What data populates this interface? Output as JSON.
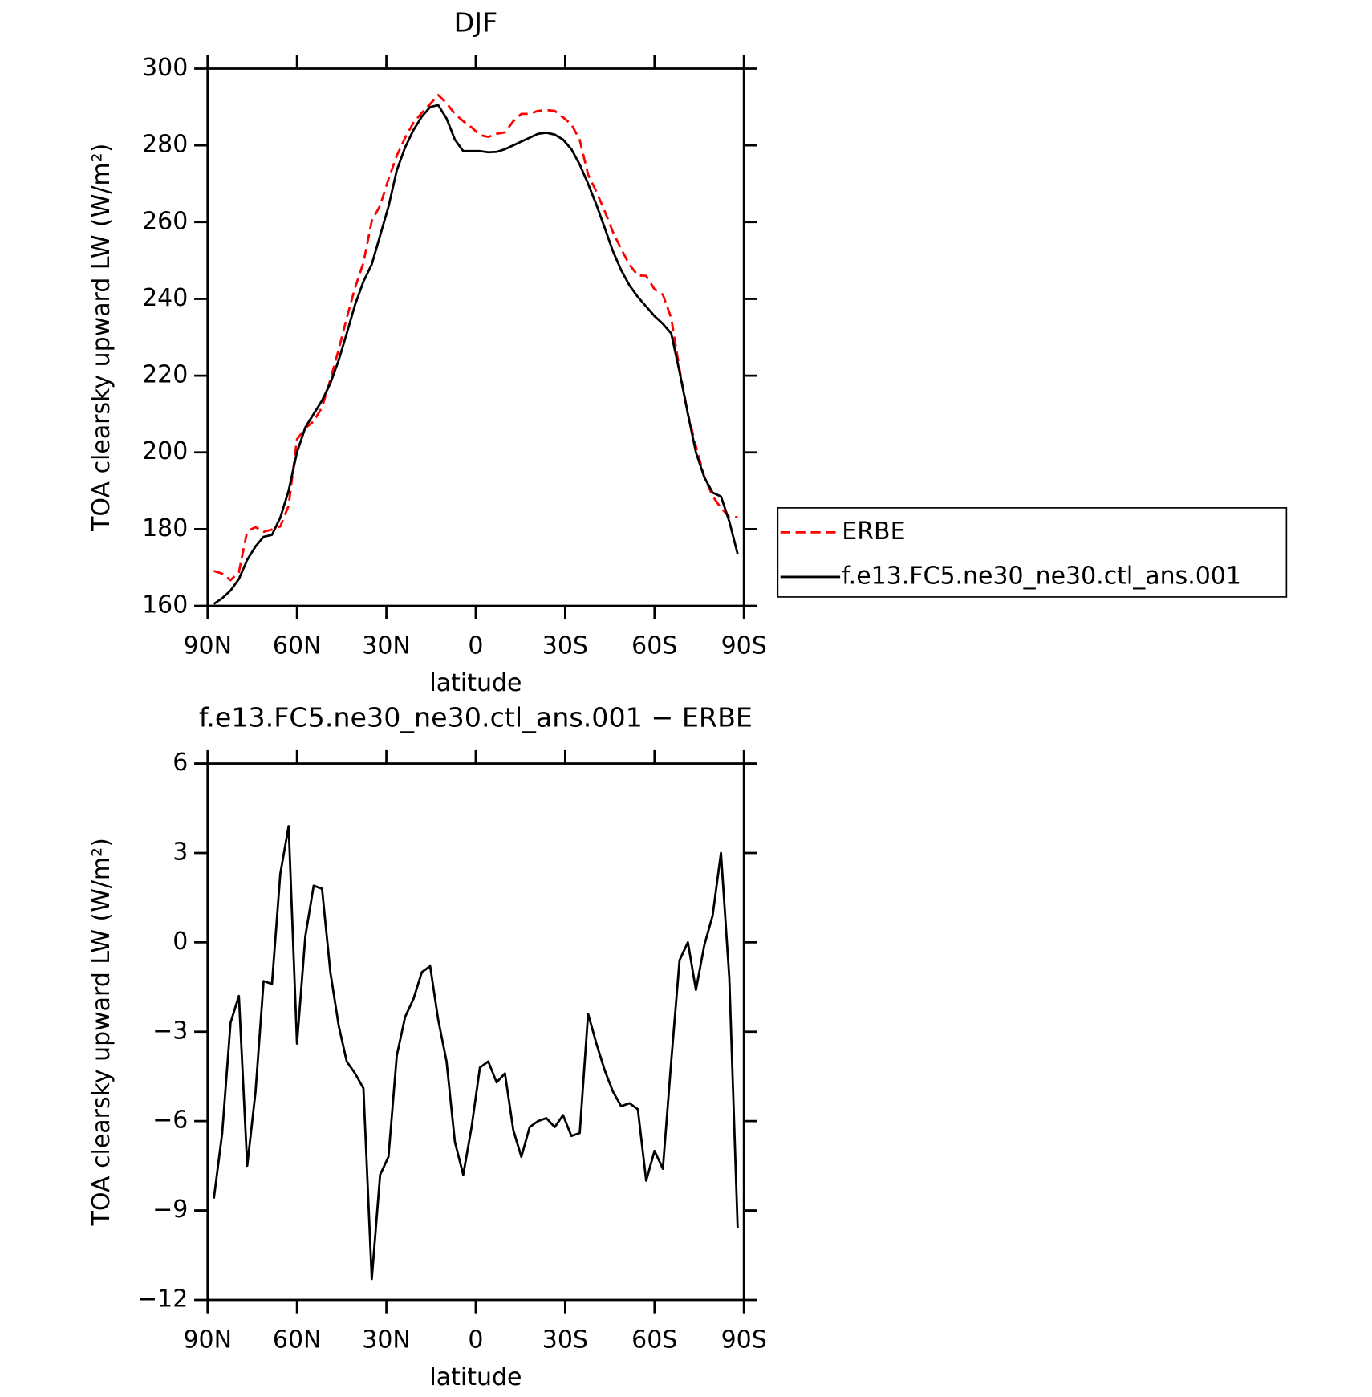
{
  "chart_data": [
    {
      "type": "line",
      "title": "DJF",
      "xlabel": "latitude",
      "ylabel": "TOA clearsky upward LW (W/m²)",
      "x": [
        87.9,
        85.1,
        82.3,
        79.5,
        76.7,
        73.9,
        71.2,
        68.4,
        65.6,
        62.8,
        60.0,
        57.2,
        54.4,
        51.6,
        48.8,
        46.0,
        43.3,
        40.5,
        37.7,
        34.9,
        32.1,
        29.3,
        26.5,
        23.7,
        20.9,
        18.1,
        15.3,
        12.6,
        9.8,
        7.0,
        4.2,
        1.4,
        -1.4,
        -4.2,
        -7.0,
        -9.8,
        -12.6,
        -15.3,
        -18.1,
        -20.9,
        -23.7,
        -26.5,
        -29.3,
        -32.1,
        -34.9,
        -37.7,
        -40.5,
        -43.3,
        -46.0,
        -48.8,
        -51.6,
        -54.4,
        -57.2,
        -60.0,
        -62.8,
        -65.6,
        -68.4,
        -71.2,
        -73.9,
        -76.7,
        -79.5,
        -82.3,
        -85.1,
        -87.9
      ],
      "xlim": [
        90,
        -90
      ],
      "xticks": [
        {
          "value": 90,
          "label": "90N"
        },
        {
          "value": 60,
          "label": "60N"
        },
        {
          "value": 30,
          "label": "30N"
        },
        0,
        {
          "value": -30,
          "label": "30S"
        },
        {
          "value": -60,
          "label": "60S"
        },
        {
          "value": -90,
          "label": "90S"
        }
      ],
      "ylim": [
        160,
        300
      ],
      "yticks": [
        160,
        180,
        200,
        220,
        240,
        260,
        280,
        300
      ],
      "legend": "right",
      "series": [
        {
          "name": "ERBE",
          "color": "#ff0000",
          "dash": true,
          "values": [
            169.1,
            168.4,
            166.7,
            168.8,
            179.5,
            180.5,
            179.3,
            179.9,
            180.7,
            186.1,
            203.4,
            206.3,
            208.1,
            211.7,
            219,
            226.8,
            235,
            242.9,
            249.4,
            260.3,
            264.3,
            271.2,
            277.3,
            282,
            285.9,
            288.5,
            290.8,
            293.1,
            291,
            288.2,
            286.3,
            284.7,
            282.7,
            282.2,
            283,
            283.4,
            286.3,
            288.2,
            288.2,
            289,
            289.2,
            289,
            287.3,
            285.5,
            281.4,
            272.4,
            267.9,
            262.8,
            257.5,
            253,
            248.9,
            246.1,
            246,
            242.5,
            241.1,
            235,
            221.6,
            210,
            201.6,
            193.6,
            188.6,
            185.5,
            183.2,
            183.1
          ]
        },
        {
          "name": "f.e13.FC5.ne30_ne30.ctl_ans.001",
          "color": "#000000",
          "dash": false,
          "values": [
            160.5,
            162,
            164,
            167,
            172,
            175.5,
            178,
            178.5,
            183,
            190,
            200,
            206.5,
            210,
            213.5,
            218,
            224,
            231,
            238.5,
            244.5,
            249,
            256.5,
            264,
            273.5,
            279.5,
            284,
            287.5,
            290,
            290.5,
            287,
            281.5,
            278.5,
            278.5,
            278.5,
            278.2,
            278.3,
            279,
            280,
            281,
            282,
            283,
            283.3,
            282.8,
            281.5,
            279,
            275,
            270,
            264.5,
            258.5,
            252.5,
            247.5,
            243.5,
            240.5,
            238,
            235.5,
            233.5,
            231,
            221,
            210,
            200,
            193.5,
            189.5,
            188.5,
            182,
            173.5
          ]
        }
      ]
    },
    {
      "type": "line",
      "title": "f.e13.FC5.ne30_ne30.ctl_ans.001 − ERBE",
      "xlabel": "latitude",
      "ylabel": "TOA clearsky upward LW (W/m²)",
      "x": [
        87.9,
        85.1,
        82.3,
        79.5,
        76.7,
        73.9,
        71.2,
        68.4,
        65.6,
        62.8,
        60.0,
        57.2,
        54.4,
        51.6,
        48.8,
        46.0,
        43.3,
        40.5,
        37.7,
        34.9,
        32.1,
        29.3,
        26.5,
        23.7,
        20.9,
        18.1,
        15.3,
        12.6,
        9.8,
        7.0,
        4.2,
        1.4,
        -1.4,
        -4.2,
        -7.0,
        -9.8,
        -12.6,
        -15.3,
        -18.1,
        -20.9,
        -23.7,
        -26.5,
        -29.3,
        -32.1,
        -34.9,
        -37.7,
        -40.5,
        -43.3,
        -46.0,
        -48.8,
        -51.6,
        -54.4,
        -57.2,
        -60.0,
        -62.8,
        -65.6,
        -68.4,
        -71.2,
        -73.9,
        -76.7,
        -79.5,
        -82.3,
        -85.1,
        -87.9
      ],
      "xlim": [
        90,
        -90
      ],
      "xticks": [
        {
          "value": 90,
          "label": "90N"
        },
        {
          "value": 60,
          "label": "60N"
        },
        {
          "value": 30,
          "label": "30N"
        },
        0,
        {
          "value": -30,
          "label": "30S"
        },
        {
          "value": -60,
          "label": "60S"
        },
        {
          "value": -90,
          "label": "90S"
        }
      ],
      "ylim": [
        -12,
        6
      ],
      "yticks": [
        {
          "value": -12,
          "label": "−12"
        },
        {
          "value": -9,
          "label": "−9"
        },
        {
          "value": -6,
          "label": "−6"
        },
        {
          "value": -3,
          "label": "−3"
        },
        0,
        3,
        6
      ],
      "series": [
        {
          "color": "#000000",
          "dash": false,
          "values": [
            -8.6,
            -6.4,
            -2.7,
            -1.8,
            -7.5,
            -5.0,
            -1.3,
            -1.4,
            2.3,
            3.9,
            -3.4,
            0.2,
            1.9,
            1.8,
            -1.0,
            -2.8,
            -4.0,
            -4.4,
            -4.9,
            -11.3,
            -7.8,
            -7.2,
            -3.8,
            -2.5,
            -1.9,
            -1.0,
            -0.8,
            -2.6,
            -4.0,
            -6.7,
            -7.8,
            -6.2,
            -4.2,
            -4.0,
            -4.7,
            -4.4,
            -6.3,
            -7.2,
            -6.2,
            -6.0,
            -5.9,
            -6.2,
            -5.8,
            -6.5,
            -6.4,
            -2.4,
            -3.4,
            -4.3,
            -5.0,
            -5.5,
            -5.4,
            -5.6,
            -8.0,
            -7.0,
            -7.6,
            -4.0,
            -0.6,
            0.0,
            -1.6,
            -0.1,
            0.9,
            3.0,
            -1.2,
            -9.6
          ]
        }
      ]
    }
  ]
}
